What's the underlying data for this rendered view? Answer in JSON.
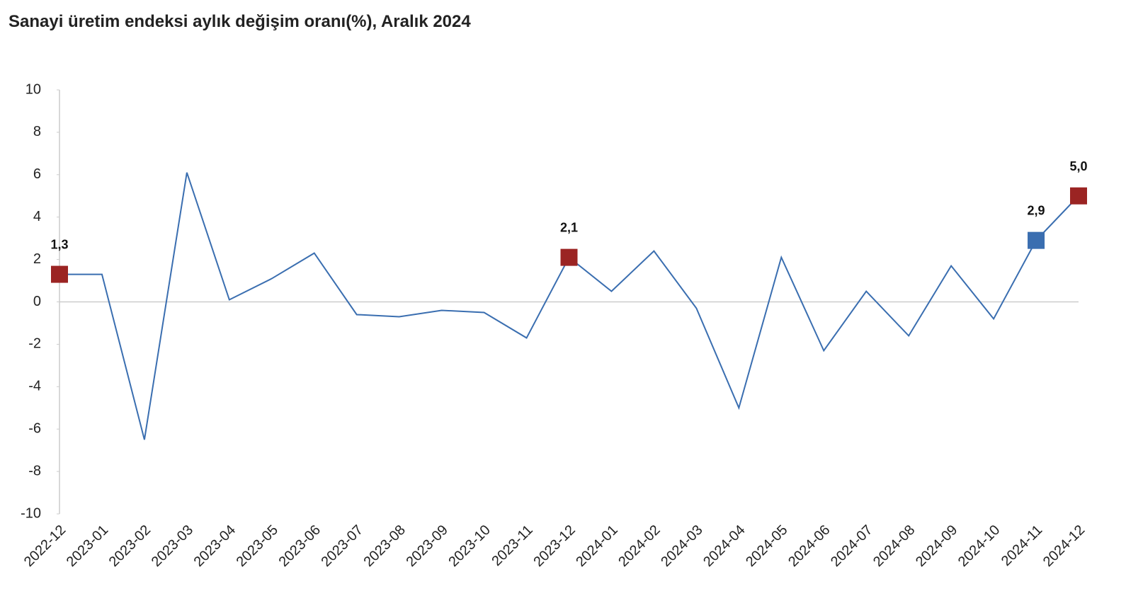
{
  "chart_data": {
    "type": "line",
    "title": "Sanayi üretim endeksi aylık değişim oranı(%), Aralık 2024",
    "categories": [
      "2022-12",
      "2023-01",
      "2023-02",
      "2023-03",
      "2023-04",
      "2023-05",
      "2023-06",
      "2023-07",
      "2023-08",
      "2023-09",
      "2023-10",
      "2023-11",
      "2023-12",
      "2024-01",
      "2024-02",
      "2024-03",
      "2024-04",
      "2024-05",
      "2024-06",
      "2024-07",
      "2024-08",
      "2024-09",
      "2024-10",
      "2024-11",
      "2024-12"
    ],
    "values": [
      1.3,
      1.3,
      -6.5,
      6.1,
      0.1,
      1.1,
      2.3,
      -0.6,
      -0.7,
      -0.4,
      -0.5,
      -1.7,
      2.1,
      0.5,
      2.4,
      -0.3,
      -5.0,
      2.1,
      -2.3,
      0.5,
      -1.6,
      1.7,
      -0.8,
      2.9,
      5.0
    ],
    "value_labels": [
      "1,3",
      null,
      null,
      null,
      null,
      null,
      null,
      null,
      null,
      null,
      null,
      null,
      "2,1",
      null,
      null,
      null,
      null,
      null,
      null,
      null,
      null,
      null,
      null,
      "2,9",
      "5,0"
    ],
    "marker_colors": [
      "#9b2423",
      null,
      null,
      null,
      null,
      null,
      null,
      null,
      null,
      null,
      null,
      null,
      "#9b2423",
      null,
      null,
      null,
      null,
      null,
      null,
      null,
      null,
      null,
      null,
      "#3a6eb0",
      "#9b2423"
    ],
    "color": "#3a6eb0",
    "ylim": [
      -10,
      10
    ],
    "yticks": [
      -10,
      -8,
      -6,
      -4,
      -2,
      0,
      2,
      4,
      6,
      8,
      10
    ]
  }
}
